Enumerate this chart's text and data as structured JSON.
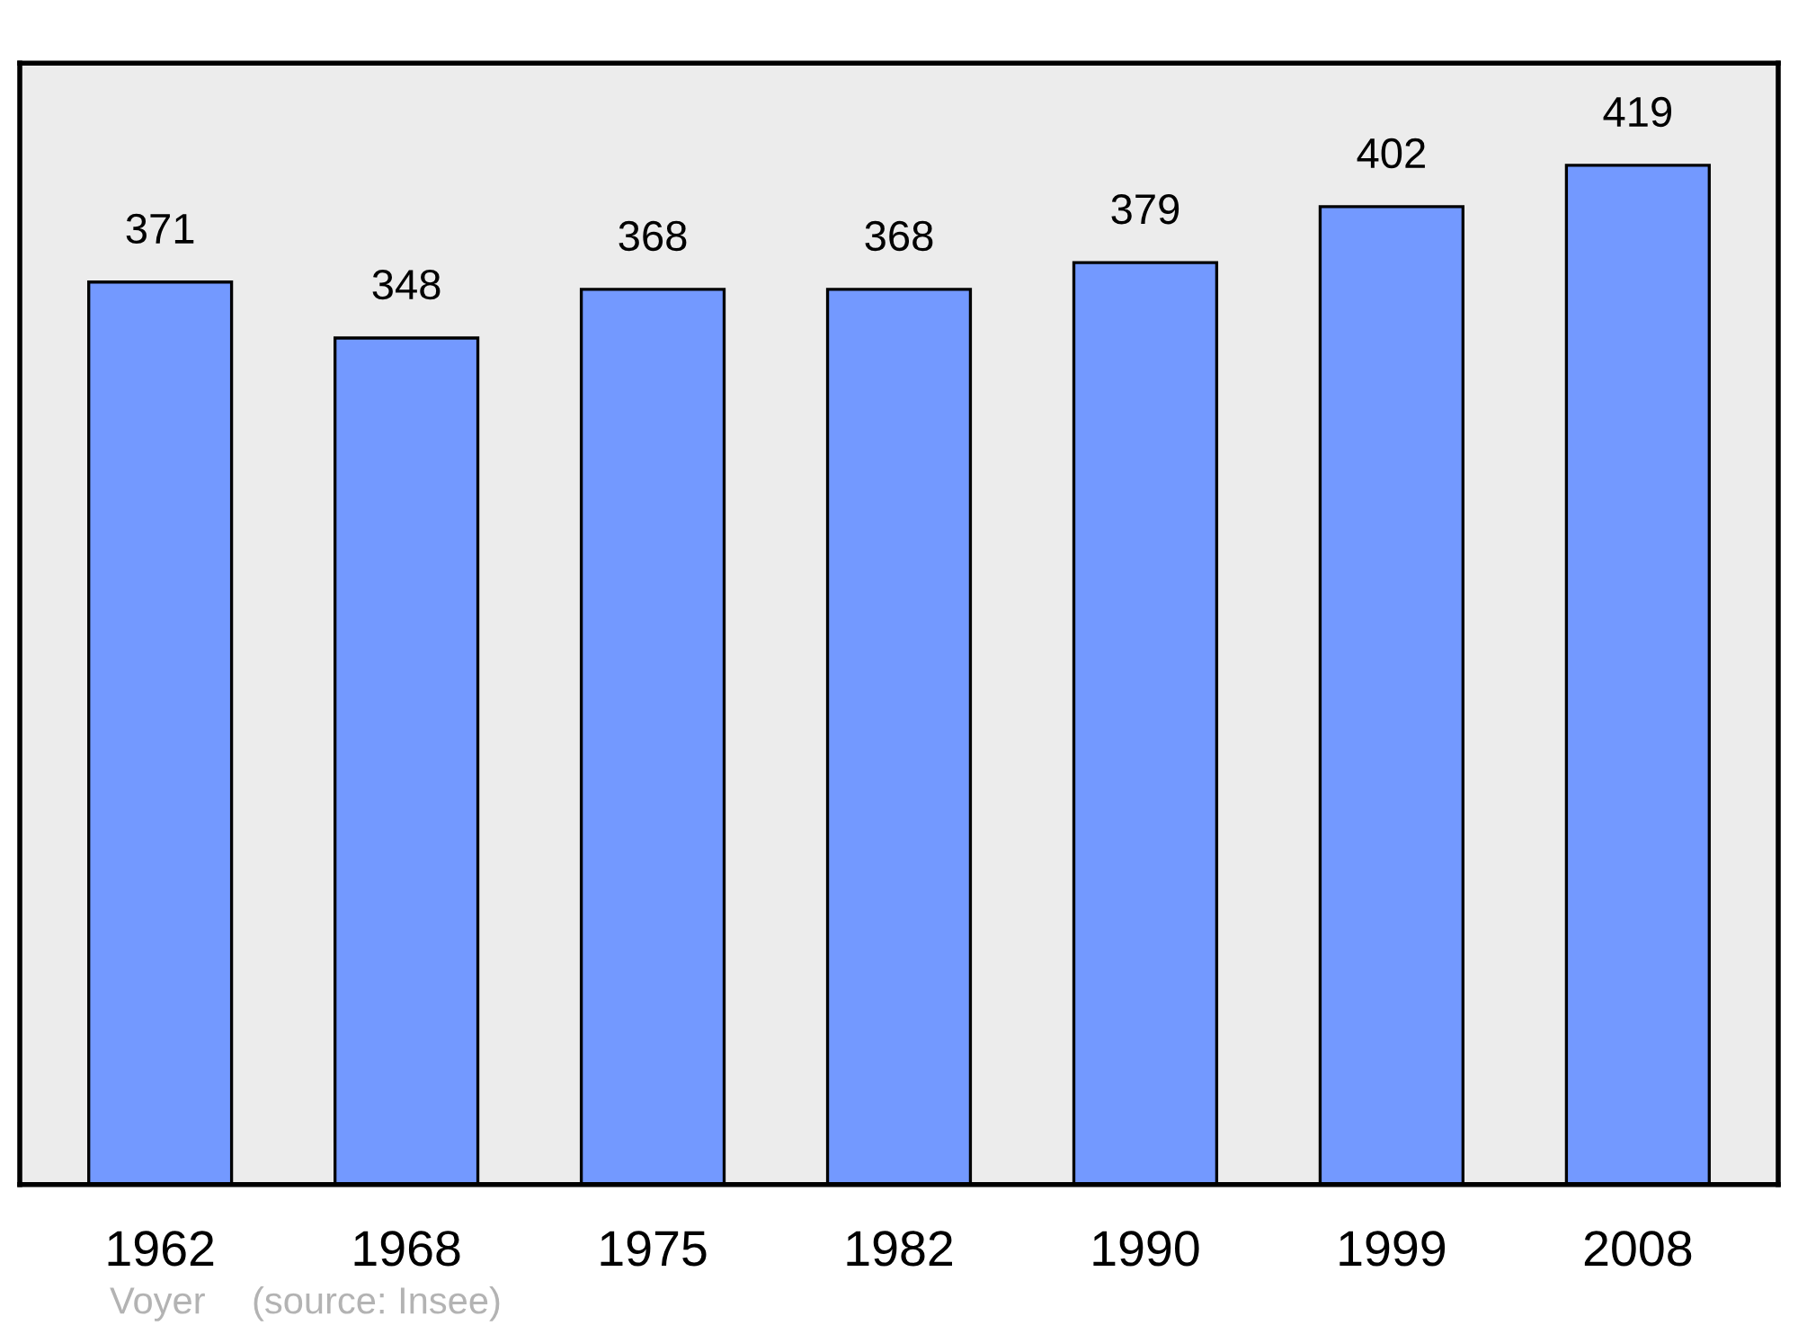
{
  "chart_data": {
    "type": "bar",
    "categories": [
      "1962",
      "1968",
      "1975",
      "1982",
      "1990",
      "1999",
      "2008"
    ],
    "values": [
      371,
      348,
      368,
      368,
      379,
      402,
      419
    ],
    "color": "#7399ff",
    "ylim": [
      0,
      461
    ],
    "data_labels": true,
    "tick_labels": "x",
    "grid": false,
    "legend": false,
    "annotations": [
      "Voyer",
      "(source: Insee)"
    ]
  }
}
